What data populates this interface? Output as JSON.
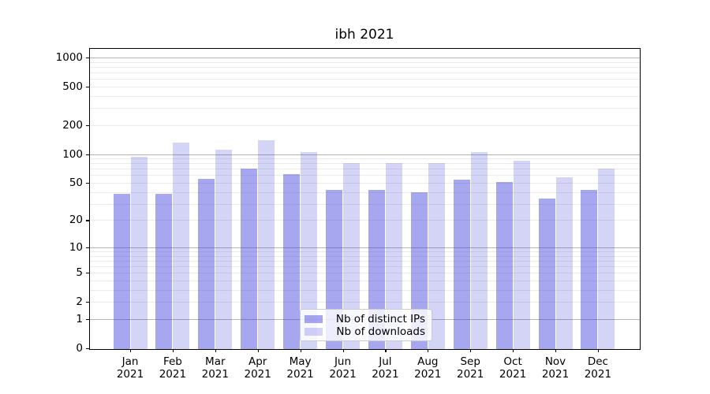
{
  "chart_data": {
    "type": "bar",
    "title": "ibh 2021",
    "categories": [
      "Jan",
      "Feb",
      "Mar",
      "Apr",
      "May",
      "Jun",
      "Jul",
      "Aug",
      "Sep",
      "Oct",
      "Nov",
      "Dec"
    ],
    "year_suffix": "2021",
    "series": [
      {
        "name": "Nb of distinct IPs",
        "values": [
          38,
          38,
          55,
          70,
          62,
          42,
          42,
          40,
          54,
          51,
          34,
          42
        ]
      },
      {
        "name": "Nb of downloads",
        "values": [
          94,
          132,
          112,
          139,
          104,
          80,
          80,
          81,
          105,
          85,
          57,
          70
        ]
      }
    ],
    "xlabel": "",
    "ylabel": "",
    "yscale": "log1p",
    "y_ticks": [
      0,
      1,
      2,
      5,
      10,
      20,
      50,
      100,
      200,
      500,
      1000
    ],
    "ylim": [
      0,
      1250
    ],
    "grid": true,
    "legend_position": "lower center",
    "colors": {
      "series_fills": [
        "rgba(60,60,220,0.45)",
        "rgba(60,60,220,0.22)"
      ],
      "grid_major": "#b4b4b4",
      "grid_minor": "#ebebeb",
      "axis": "#000000",
      "background": "#ffffff"
    }
  }
}
